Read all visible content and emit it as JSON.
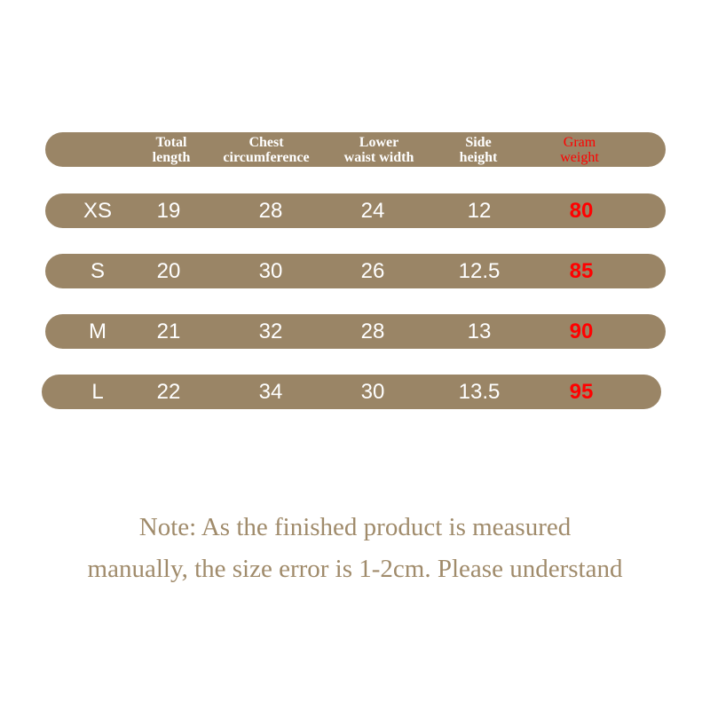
{
  "colors": {
    "bar": "#9a8566",
    "highlight": "#ff0000",
    "note": "#a08b6b"
  },
  "header": [
    "",
    "Total\nlength",
    "Chest\ncircumference",
    "Lower\nwaist width",
    "Side\nheight",
    "Gram\nweight"
  ],
  "header_lines": [
    [
      "Total",
      "length"
    ],
    [
      "Chest",
      "circumference"
    ],
    [
      "Lower",
      "waist width"
    ],
    [
      "Side",
      "height"
    ],
    [
      "Gram",
      "weight"
    ]
  ],
  "rows": [
    [
      "XS",
      "19",
      "28",
      "24",
      "12",
      "80"
    ],
    [
      "S",
      "20",
      "30",
      "26",
      "12.5",
      "85"
    ],
    [
      "M",
      "21",
      "32",
      "28",
      "13",
      "90"
    ],
    [
      "L",
      "22",
      "34",
      "30",
      "13.5",
      "95"
    ]
  ],
  "note": {
    "line1": "Note: As the finished product is measured",
    "line2": "manually, the size error is 1-2cm. Please understand"
  }
}
